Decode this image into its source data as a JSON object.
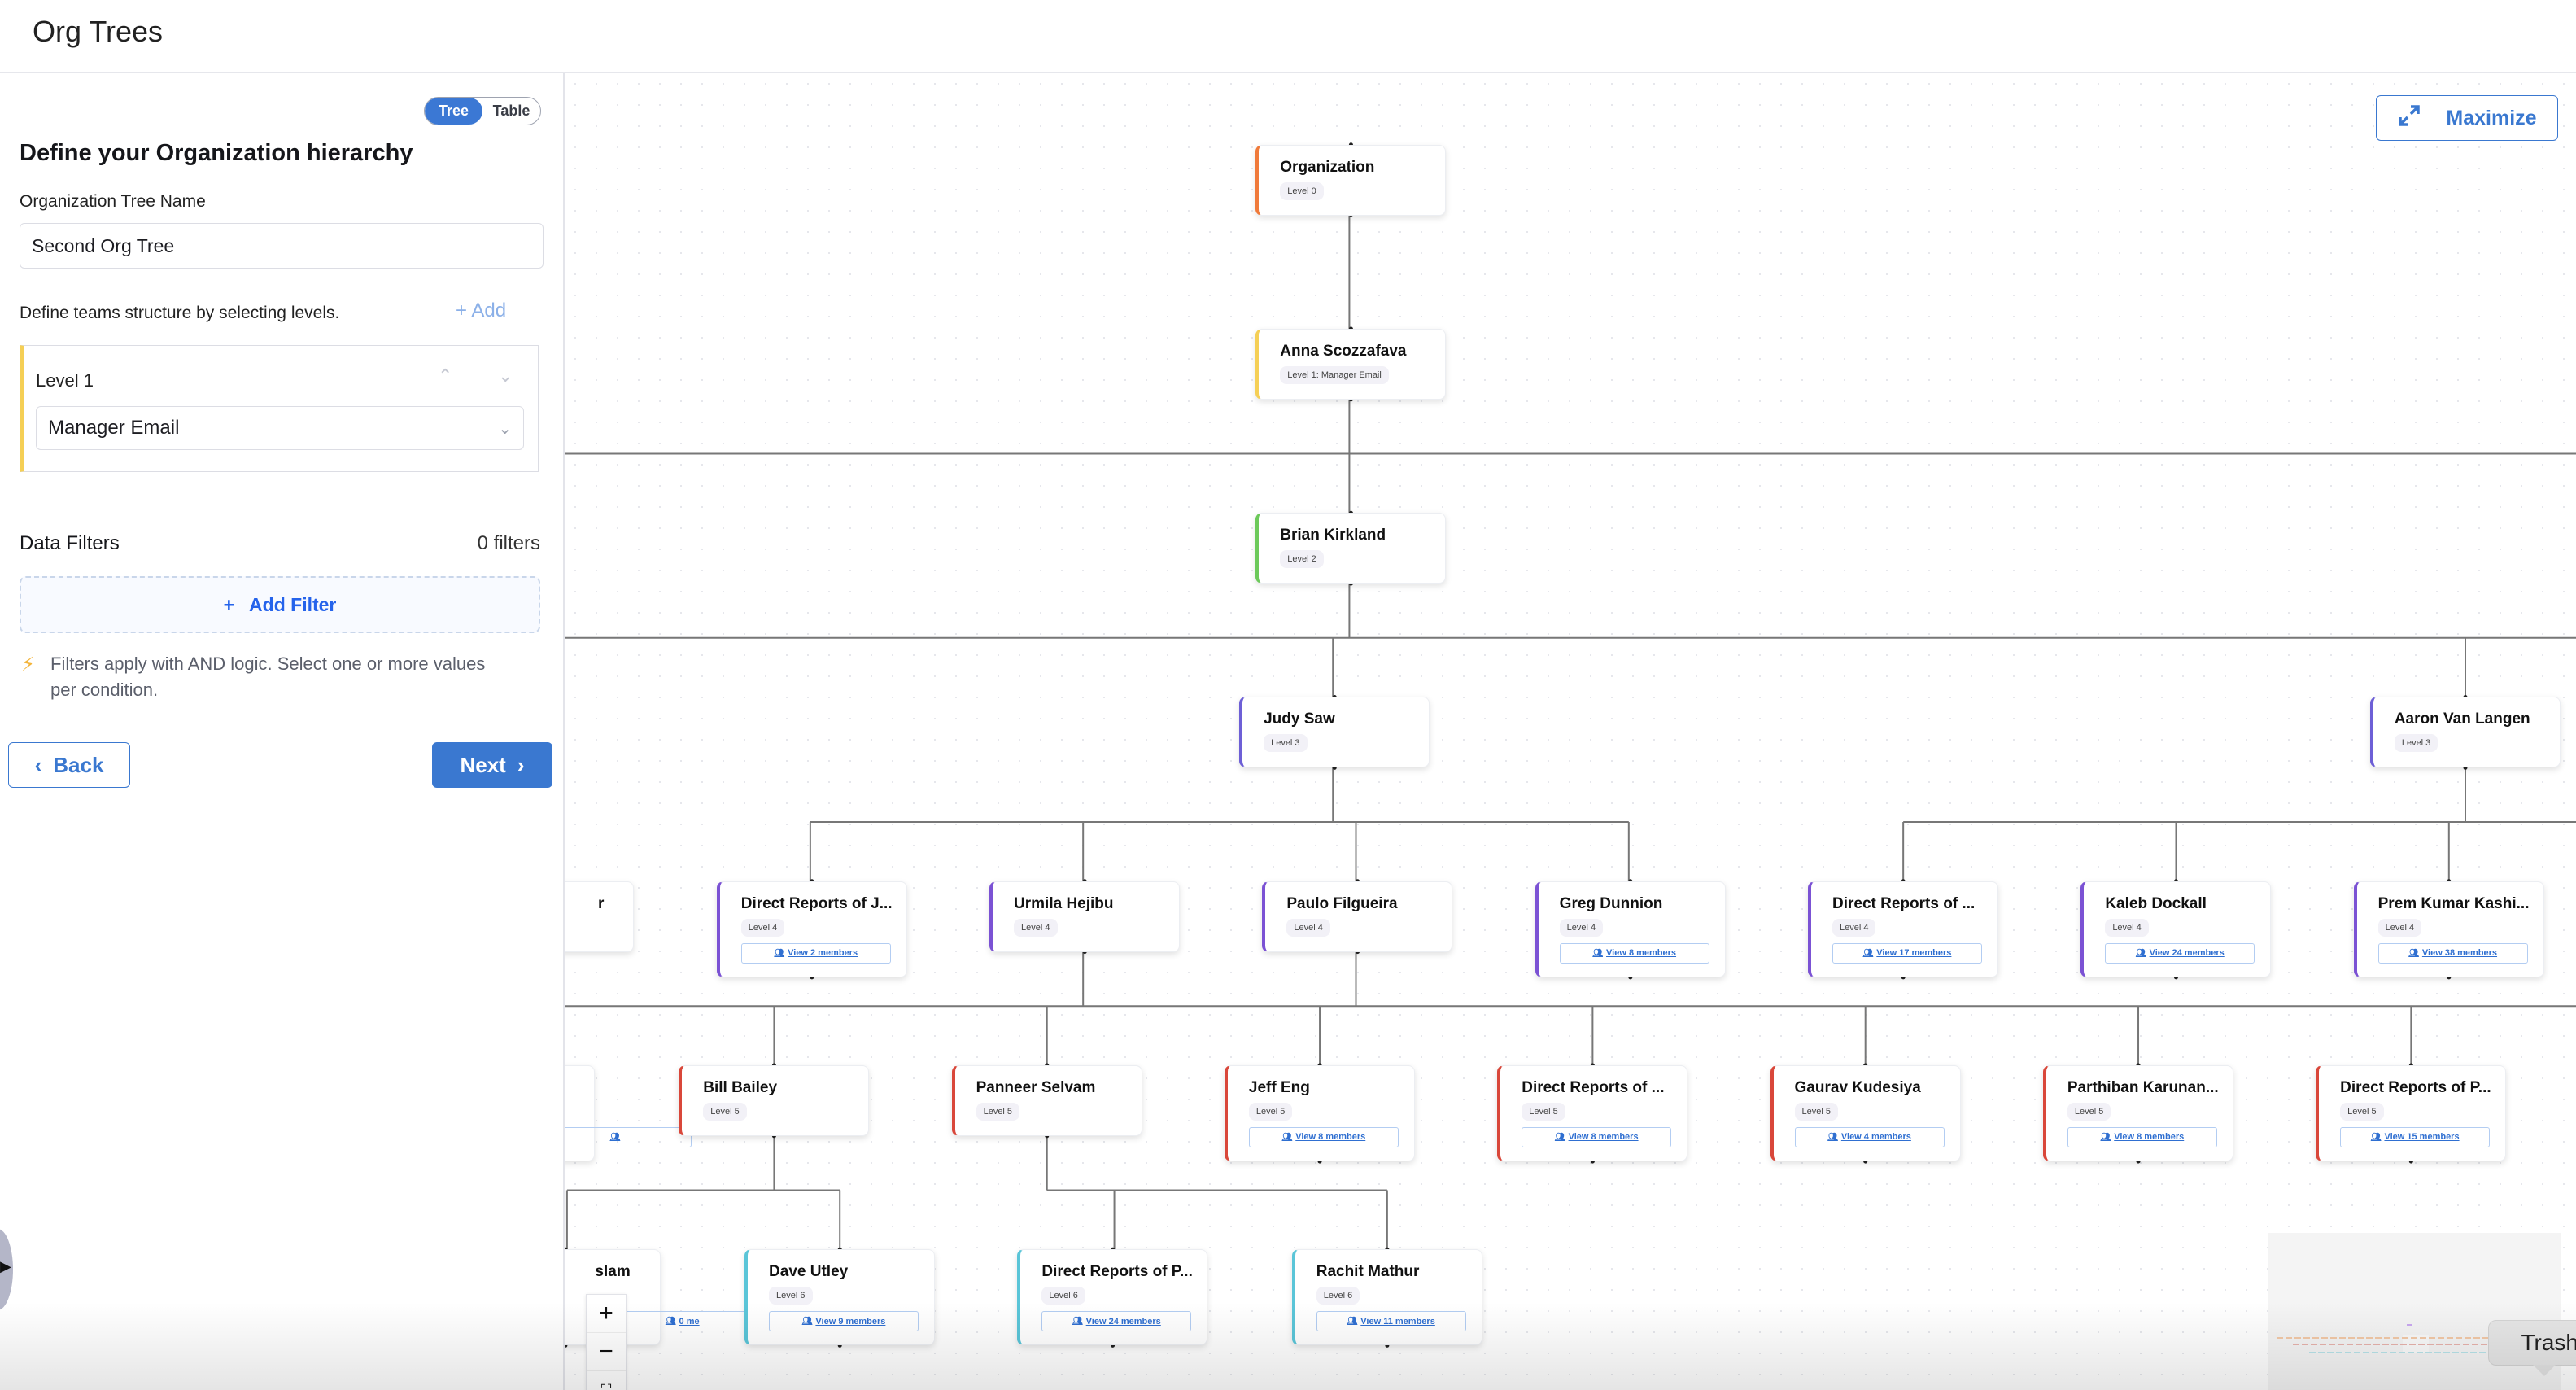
{
  "header": {
    "title": "Org Trees"
  },
  "panel": {
    "toggle": {
      "tree": "Tree",
      "table": "Table",
      "selected": "Tree"
    },
    "heading": "Define your Organization hierarchy",
    "name_label": "Organization Tree Name",
    "name_value": "Second Org Tree",
    "levels_hint": "Define teams structure by selecting levels.",
    "add_label": "Add",
    "levels": [
      {
        "label": "Level 1",
        "field": "Manager Email"
      }
    ],
    "filters": {
      "title": "Data Filters",
      "count": "0 filters",
      "add_label": "Add Filter",
      "note": "Filters apply with AND logic. Select one or more values per condition."
    },
    "back_label": "Back",
    "next_label": "Next"
  },
  "canvas": {
    "maximize_label": "Maximize",
    "zoom_in": "+",
    "zoom_out": "−",
    "tooltip": "Trash"
  },
  "colors": {
    "accent": "#3a78d0",
    "level0": "#f07a3a",
    "level1": "#f5cf55",
    "level2": "#6cc95a",
    "level3": "#6d5fd6",
    "level4": "#7b52d4",
    "level5": "#d9473a",
    "level6": "#5ac5d8"
  },
  "tree": {
    "nodes": [
      {
        "name": "Organization",
        "level": "Level 0",
        "color": "level0"
      },
      {
        "name": "Anna Scozzafava",
        "level": "Level 1: Manager Email",
        "color": "level1"
      },
      {
        "name": "Brian Kirkland",
        "level": "Level 2",
        "color": "level2"
      },
      {
        "name": "Judy Saw",
        "level": "Level 3",
        "color": "level3"
      },
      {
        "name": "Aaron Van Langen",
        "level": "Level 3",
        "color": "level3"
      },
      {
        "name": "r",
        "level": "",
        "color": "level4",
        "partial": true
      },
      {
        "name": "Direct Reports of J...",
        "level": "Level 4",
        "members": "View 2 members",
        "color": "level4"
      },
      {
        "name": "Urmila Hejibu",
        "level": "Level 4",
        "color": "level4"
      },
      {
        "name": "Paulo Filgueira",
        "level": "Level 4",
        "color": "level4"
      },
      {
        "name": "Greg Dunnion",
        "level": "Level 4",
        "members": "View 8 members",
        "color": "level4"
      },
      {
        "name": "Direct Reports of ...",
        "level": "Level 4",
        "members": "View 17 members",
        "color": "level4"
      },
      {
        "name": "Kaleb Dockall",
        "level": "Level 4",
        "members": "View 24 members",
        "color": "level4"
      },
      {
        "name": "Prem Kumar Kashi...",
        "level": "Level 4",
        "members": "View 38 members",
        "color": "level4"
      },
      {
        "name": "",
        "level": "",
        "members": " ",
        "color": "level5",
        "partial": true
      },
      {
        "name": "Bill Bailey",
        "level": "Level 5",
        "color": "level5"
      },
      {
        "name": "Panneer Selvam",
        "level": "Level 5",
        "color": "level5"
      },
      {
        "name": "Jeff Eng",
        "level": "Level 5",
        "members": "View 8 members",
        "color": "level5"
      },
      {
        "name": "Direct Reports of ...",
        "level": "Level 5",
        "members": "View 8 members",
        "color": "level5"
      },
      {
        "name": "Gaurav Kudesiya",
        "level": "Level 5",
        "members": "View 4 members",
        "color": "level5"
      },
      {
        "name": "Parthiban Karunan...",
        "level": "Level 5",
        "members": "View 8 members",
        "color": "level5"
      },
      {
        "name": "Direct Reports of P...",
        "level": "Level 5",
        "members": "View 15 members",
        "color": "level5"
      },
      {
        "name": "slam",
        "level": "",
        "members": "0 me",
        "color": "level6",
        "partial": true
      },
      {
        "name": "Dave Utley",
        "level": "Level 6",
        "members": "View 9 members",
        "color": "level6"
      },
      {
        "name": "Direct Reports of P...",
        "level": "Level 6",
        "members": "View 24 members",
        "color": "level6"
      },
      {
        "name": "Rachit Mathur",
        "level": "Level 6",
        "members": "View 11 members",
        "color": "level6"
      }
    ]
  }
}
